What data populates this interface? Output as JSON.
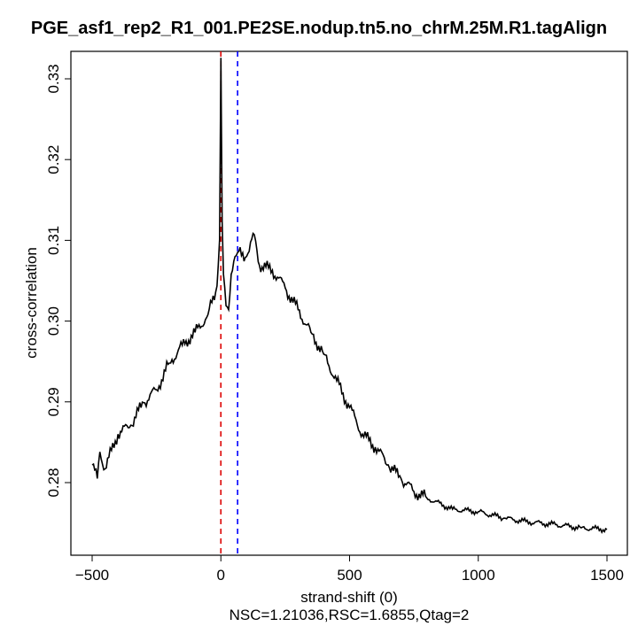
{
  "chart_data": {
    "type": "line",
    "title": "PGE_asf1_rep2_R1_001.PE2SE.nodup.tn5.no_chrM.25M.R1.tagAlign",
    "xlabel": "strand-shift (0)",
    "ylabel": "cross-correlation",
    "subtitle": "NSC=1.21036,RSC=1.6855,Qtag=2",
    "xlim": [
      -500,
      1500
    ],
    "ylim": [
      0.2735,
      0.3335
    ],
    "xticks": [
      -500,
      0,
      500,
      1000,
      1500
    ],
    "xtick_labels": [
      "−500",
      "0",
      "500",
      "1000",
      "1500"
    ],
    "yticks": [
      0.28,
      0.29,
      0.3,
      0.31,
      0.32,
      0.33
    ],
    "ytick_labels": [
      "0.28",
      "0.29",
      "0.30",
      "0.31",
      "0.32",
      "0.33"
    ],
    "vlines": [
      {
        "x": 0,
        "color": "#dd0000",
        "style": "dashed"
      },
      {
        "x": 65,
        "color": "#0000ff",
        "style": "dashed"
      }
    ],
    "series": [
      {
        "name": "cross-correlation",
        "color": "#000000",
        "x": [
          -500,
          -480,
          -470,
          -450,
          -400,
          -350,
          -300,
          -250,
          -200,
          -150,
          -100,
          -50,
          -20,
          -10,
          -5,
          0,
          5,
          10,
          20,
          30,
          40,
          50,
          65,
          100,
          130,
          150,
          200,
          250,
          300,
          350,
          400,
          450,
          500,
          550,
          600,
          650,
          700,
          750,
          800,
          900,
          1000,
          1100,
          1200,
          1300,
          1400,
          1500
        ],
        "y": [
          0.2822,
          0.2805,
          0.2838,
          0.2817,
          0.286,
          0.2871,
          0.2899,
          0.2915,
          0.2948,
          0.297,
          0.2986,
          0.3008,
          0.3036,
          0.3069,
          0.3101,
          0.3326,
          0.3123,
          0.3058,
          0.3019,
          0.3014,
          0.3058,
          0.3074,
          0.3085,
          0.308,
          0.3107,
          0.3069,
          0.3063,
          0.3041,
          0.3014,
          0.2986,
          0.2959,
          0.2926,
          0.2893,
          0.286,
          0.2844,
          0.2822,
          0.2805,
          0.2789,
          0.2781,
          0.2767,
          0.2764,
          0.2756,
          0.2751,
          0.2748,
          0.2744,
          0.2742
        ]
      }
    ]
  }
}
